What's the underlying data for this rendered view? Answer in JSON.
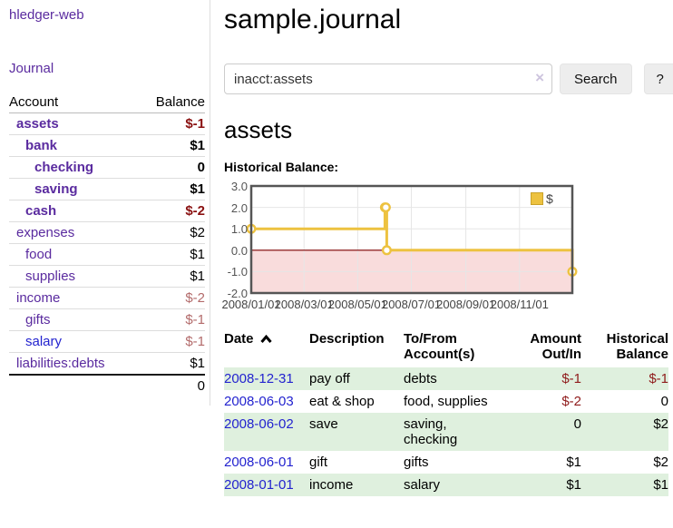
{
  "colors": {
    "link_purple": "#5a2b9f",
    "link_blue": "#2323cf",
    "negative_strong": "#8a1111",
    "negative_soft": "#b36b6b",
    "negative_table": "#8f1b1b",
    "row_green": "#dff0de",
    "series_gold": "#EDC240",
    "negative_region_pink": "#f9dcdc",
    "zero_line": "#800000",
    "grid": "#e6e6e6",
    "chart_frame": "#555555",
    "button_bg": "#ededed"
  },
  "app": {
    "brand": "hledger-web"
  },
  "sidebar": {
    "journal_link": "Journal",
    "accounts": {
      "header_account": "Account",
      "header_balance": "Balance",
      "rows": [
        {
          "name": "assets",
          "balance": "$-1"
        },
        {
          "name": "bank",
          "balance": "$1"
        },
        {
          "name": "checking",
          "balance": "0"
        },
        {
          "name": "saving",
          "balance": "$1"
        },
        {
          "name": "cash",
          "balance": "$-2"
        },
        {
          "name": "expenses",
          "balance": "$2"
        },
        {
          "name": "food",
          "balance": "$1"
        },
        {
          "name": "supplies",
          "balance": "$1"
        },
        {
          "name": "income",
          "balance": "$-2"
        },
        {
          "name": "gifts",
          "balance": "$-1"
        },
        {
          "name": "salary",
          "balance": "$-1"
        },
        {
          "name": "liabilities:debts",
          "balance": "$1"
        }
      ],
      "total": "0"
    }
  },
  "main": {
    "title": "sample.journal",
    "search": {
      "value": "inacct:assets",
      "clear_icon": "×",
      "button_label": "Search",
      "help_label": "?"
    },
    "account_heading": "assets",
    "chart_label": "Historical Balance:"
  },
  "chart_data": {
    "type": "line",
    "title": "Historical Balance",
    "step": true,
    "x_range": [
      "2008-01-01",
      "2008-12-31"
    ],
    "y_range": [
      -2,
      3
    ],
    "x_ticks": [
      {
        "date": "2008-01-01",
        "label": "2008/01/01"
      },
      {
        "date": "2008-03-01",
        "label": "2008/03/01"
      },
      {
        "date": "2008-05-01",
        "label": "2008/05/01"
      },
      {
        "date": "2008-07-01",
        "label": "2008/07/01"
      },
      {
        "date": "2008-09-01",
        "label": "2008/09/01"
      },
      {
        "date": "2008-11-01",
        "label": "2008/11/01"
      }
    ],
    "y_ticks": [
      {
        "value": 3,
        "label": "3.0"
      },
      {
        "value": 2,
        "label": "2.0"
      },
      {
        "value": 1,
        "label": "1.0"
      },
      {
        "value": 0,
        "label": "0.0"
      },
      {
        "value": -1,
        "label": "-1.0"
      },
      {
        "value": -2,
        "label": "-2.0"
      }
    ],
    "series": [
      {
        "name": "$",
        "color": "#EDC240",
        "points": [
          [
            "2008-01-01",
            1
          ],
          [
            "2008-06-01",
            2
          ],
          [
            "2008-06-02",
            2
          ],
          [
            "2008-06-03",
            0
          ],
          [
            "2008-12-31",
            -1
          ]
        ]
      }
    ],
    "legend_position": "top-right",
    "grid": true,
    "negative_region_shaded": true
  },
  "register": {
    "headers": {
      "date": "Date",
      "description": "Description",
      "accounts": "To/From Account(s)",
      "amount": "Amount Out/In",
      "balance": "Historical Balance"
    },
    "rows": [
      {
        "date": "2008-12-31",
        "description": "pay off",
        "accounts": "debts",
        "amount": "$-1",
        "balance": "$-1"
      },
      {
        "date": "2008-06-03",
        "description": "eat & shop",
        "accounts": "food, supplies",
        "amount": "$-2",
        "balance": "0"
      },
      {
        "date": "2008-06-02",
        "description": "save",
        "accounts": "saving, checking",
        "amount": "0",
        "balance": "$2"
      },
      {
        "date": "2008-06-01",
        "description": "gift",
        "accounts": "gifts",
        "amount": "$1",
        "balance": "$2"
      },
      {
        "date": "2008-01-01",
        "description": "income",
        "accounts": "salary",
        "amount": "$1",
        "balance": "$1"
      }
    ]
  }
}
